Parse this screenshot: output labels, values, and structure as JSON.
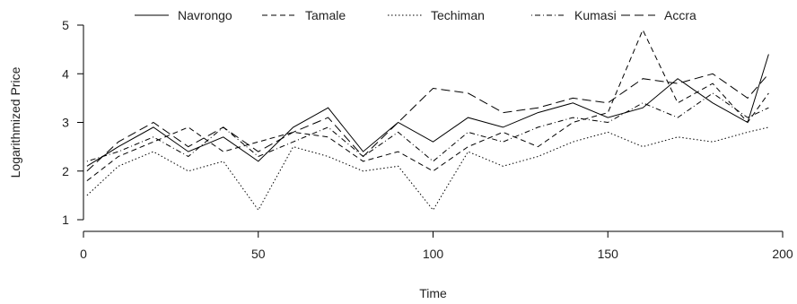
{
  "chart_data": {
    "type": "line",
    "title": "",
    "xlabel": "Time",
    "ylabel": "Logarithmized Price",
    "xlim": [
      0,
      200
    ],
    "ylim": [
      1,
      5
    ],
    "x_ticks": [
      0,
      50,
      100,
      150,
      200
    ],
    "y_ticks": [
      1,
      2,
      3,
      4,
      5
    ],
    "grid": false,
    "legend_position": "top",
    "x": [
      1,
      10,
      20,
      30,
      40,
      50,
      60,
      70,
      80,
      90,
      100,
      110,
      120,
      130,
      140,
      150,
      160,
      170,
      180,
      190,
      196
    ],
    "series": [
      {
        "name": "Navrongo",
        "dash": "solid",
        "values": [
          2.1,
          2.5,
          2.9,
          2.4,
          2.7,
          2.2,
          2.9,
          3.3,
          2.4,
          3.0,
          2.6,
          3.1,
          2.9,
          3.2,
          3.4,
          3.1,
          3.3,
          3.9,
          3.4,
          3.0,
          4.4
        ]
      },
      {
        "name": "Tamale",
        "dash": "dashed",
        "values": [
          1.8,
          2.3,
          2.6,
          2.9,
          2.4,
          2.6,
          2.8,
          2.7,
          2.2,
          2.4,
          2.0,
          2.5,
          2.8,
          2.5,
          3.0,
          3.2,
          4.9,
          3.4,
          3.8,
          3.0,
          3.6
        ]
      },
      {
        "name": "Techiman",
        "dash": "dotted",
        "values": [
          1.5,
          2.1,
          2.4,
          2.0,
          2.2,
          1.2,
          2.5,
          2.3,
          2.0,
          2.1,
          1.2,
          2.4,
          2.1,
          2.3,
          2.6,
          2.8,
          2.5,
          2.7,
          2.6,
          2.8,
          2.9
        ]
      },
      {
        "name": "Kumasi",
        "dash": "dotdash",
        "values": [
          2.2,
          2.4,
          2.7,
          2.3,
          2.9,
          2.3,
          2.6,
          2.9,
          2.3,
          2.8,
          2.2,
          2.8,
          2.6,
          2.9,
          3.1,
          3.0,
          3.4,
          3.1,
          3.6,
          3.1,
          3.3
        ]
      },
      {
        "name": "Accra",
        "dash": "longdash",
        "values": [
          2.0,
          2.6,
          3.0,
          2.5,
          2.9,
          2.4,
          2.8,
          3.1,
          2.3,
          3.0,
          3.7,
          3.6,
          3.2,
          3.3,
          3.5,
          3.4,
          3.9,
          3.8,
          4.0,
          3.5,
          4.0
        ]
      }
    ]
  }
}
